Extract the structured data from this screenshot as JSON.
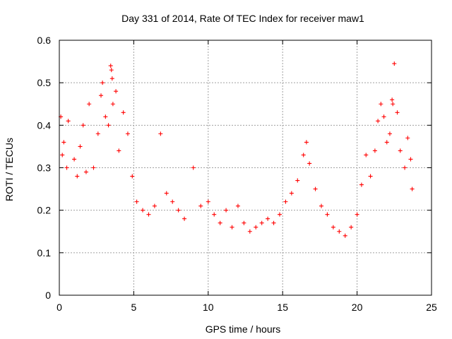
{
  "chart_data": {
    "type": "scatter",
    "title": "Day 331 of 2014, Rate Of TEC Index for receiver maw1",
    "xlabel": "GPS time / hours",
    "ylabel": "ROTI / TECUs",
    "xlim": [
      0,
      25
    ],
    "ylim": [
      0,
      0.6
    ],
    "xticks": [
      "0",
      "5",
      "10",
      "15",
      "20",
      "25"
    ],
    "yticks": [
      "0",
      "0.1",
      "0.2",
      "0.3",
      "0.4",
      "0.5",
      "0.6"
    ],
    "grid": true,
    "marker": "+",
    "color": "#ff0000",
    "series": [
      {
        "name": "",
        "points": [
          [
            0.1,
            0.42
          ],
          [
            0.2,
            0.33
          ],
          [
            0.3,
            0.36
          ],
          [
            0.5,
            0.3
          ],
          [
            0.6,
            0.41
          ],
          [
            1.0,
            0.32
          ],
          [
            1.2,
            0.28
          ],
          [
            1.4,
            0.35
          ],
          [
            1.6,
            0.4
          ],
          [
            1.8,
            0.29
          ],
          [
            2.0,
            0.45
          ],
          [
            2.3,
            0.3
          ],
          [
            2.6,
            0.38
          ],
          [
            2.8,
            0.47
          ],
          [
            2.9,
            0.5
          ],
          [
            3.1,
            0.42
          ],
          [
            3.3,
            0.4
          ],
          [
            3.45,
            0.54
          ],
          [
            3.5,
            0.53
          ],
          [
            3.55,
            0.51
          ],
          [
            3.6,
            0.45
          ],
          [
            3.8,
            0.48
          ],
          [
            4.0,
            0.34
          ],
          [
            4.3,
            0.43
          ],
          [
            4.6,
            0.38
          ],
          [
            4.9,
            0.28
          ],
          [
            5.2,
            0.22
          ],
          [
            5.6,
            0.2
          ],
          [
            6.0,
            0.19
          ],
          [
            6.4,
            0.21
          ],
          [
            6.8,
            0.38
          ],
          [
            7.2,
            0.24
          ],
          [
            7.6,
            0.22
          ],
          [
            8.0,
            0.2
          ],
          [
            8.4,
            0.18
          ],
          [
            9.0,
            0.3
          ],
          [
            9.5,
            0.21
          ],
          [
            10.0,
            0.22
          ],
          [
            10.4,
            0.19
          ],
          [
            10.8,
            0.17
          ],
          [
            11.2,
            0.2
          ],
          [
            11.6,
            0.16
          ],
          [
            12.0,
            0.21
          ],
          [
            12.4,
            0.17
          ],
          [
            12.8,
            0.15
          ],
          [
            13.2,
            0.16
          ],
          [
            13.6,
            0.17
          ],
          [
            14.0,
            0.18
          ],
          [
            14.4,
            0.17
          ],
          [
            14.8,
            0.19
          ],
          [
            15.2,
            0.22
          ],
          [
            15.6,
            0.24
          ],
          [
            16.0,
            0.27
          ],
          [
            16.4,
            0.33
          ],
          [
            16.6,
            0.36
          ],
          [
            16.8,
            0.31
          ],
          [
            17.2,
            0.25
          ],
          [
            17.6,
            0.21
          ],
          [
            18.0,
            0.19
          ],
          [
            18.4,
            0.16
          ],
          [
            18.8,
            0.15
          ],
          [
            19.2,
            0.14
          ],
          [
            19.6,
            0.16
          ],
          [
            20.0,
            0.19
          ],
          [
            20.3,
            0.26
          ],
          [
            20.6,
            0.33
          ],
          [
            20.9,
            0.28
          ],
          [
            21.2,
            0.34
          ],
          [
            21.4,
            0.41
          ],
          [
            21.6,
            0.45
          ],
          [
            21.8,
            0.42
          ],
          [
            22.0,
            0.36
          ],
          [
            22.2,
            0.38
          ],
          [
            22.35,
            0.46
          ],
          [
            22.4,
            0.45
          ],
          [
            22.5,
            0.545
          ],
          [
            22.7,
            0.43
          ],
          [
            22.9,
            0.34
          ],
          [
            23.2,
            0.3
          ],
          [
            23.4,
            0.37
          ],
          [
            23.6,
            0.32
          ],
          [
            23.7,
            0.25
          ]
        ]
      }
    ]
  }
}
